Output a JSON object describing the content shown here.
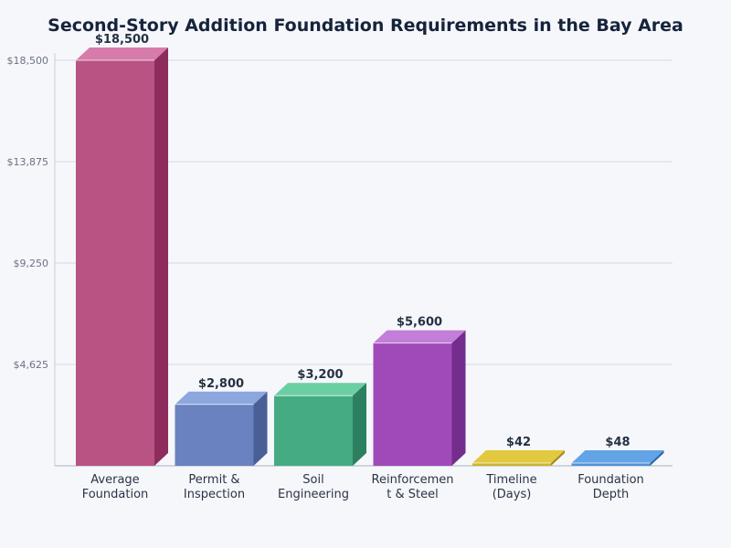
{
  "chart_data": {
    "type": "bar",
    "title": "Second-Story Addition Foundation Requirements in the Bay Area",
    "xlabel": "",
    "ylabel": "",
    "categories": [
      [
        "Average",
        "Foundation"
      ],
      [
        "Permit &",
        "Inspection"
      ],
      [
        "Soil",
        "Engineering"
      ],
      [
        "Reinforcemen",
        "t & Steel"
      ],
      [
        "Timeline",
        "(Days)"
      ],
      [
        "Foundation",
        "Depth"
      ]
    ],
    "values": [
      18500,
      2800,
      3200,
      5600,
      42,
      48
    ],
    "value_labels": [
      "$18,500",
      "$2,800",
      "$3,200",
      "$5,600",
      "$42",
      "$48"
    ],
    "ylim": [
      0,
      18500
    ],
    "yticks": [
      4625,
      9250,
      13875,
      18500
    ],
    "ytick_labels": [
      "$4,625",
      "$9,250",
      "$13,875",
      "$18,500"
    ],
    "grid": true,
    "style": "3d-bar",
    "colors": [
      {
        "front": "#b85384",
        "top": "#d77caa",
        "side": "#8e2d5d"
      },
      {
        "front": "#6a82bf",
        "top": "#8ca6de",
        "side": "#4a5f96"
      },
      {
        "front": "#45ab82",
        "top": "#6ccfa4",
        "side": "#2c8060"
      },
      {
        "front": "#a049b9",
        "top": "#c27ed8",
        "side": "#742d8c"
      },
      {
        "front": "#cfb52c",
        "top": "#e3c93f",
        "side": "#a18b18"
      },
      {
        "front": "#4f93d8",
        "top": "#62a4e6",
        "side": "#2a67aa"
      }
    ]
  }
}
